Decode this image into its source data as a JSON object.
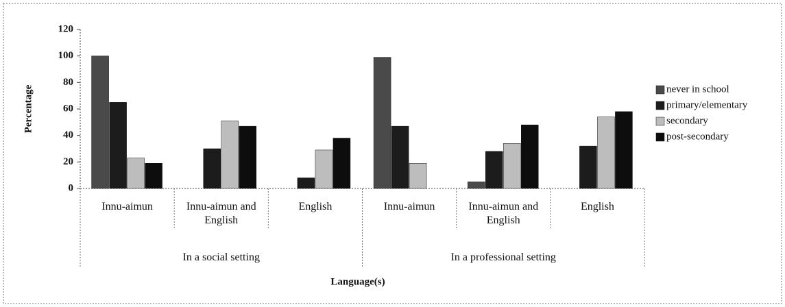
{
  "chart_data": {
    "type": "bar",
    "groups": [
      {
        "label": "In a social setting",
        "categories": [
          "Innu-aimun",
          "Innu-aimun and English",
          "English"
        ]
      },
      {
        "label": "In a professional setting",
        "categories": [
          "Innu-aimun",
          "Innu-aimun and English",
          "English"
        ]
      }
    ],
    "series": [
      {
        "name": "never in school",
        "color": "#4a4a4a",
        "values": [
          100,
          0,
          0,
          99,
          5,
          0
        ]
      },
      {
        "name": "primary/elementary",
        "color": "#1c1c1c",
        "values": [
          65,
          30,
          8,
          47,
          28,
          32
        ]
      },
      {
        "name": "secondary",
        "color": "#bdbdbd",
        "values": [
          23,
          51,
          29,
          19,
          34,
          54
        ]
      },
      {
        "name": "post-secondary",
        "color": "#0d0d0d",
        "values": [
          19,
          47,
          38,
          0,
          48,
          58
        ]
      }
    ],
    "y_label": "Percentage",
    "x_label": "Language(s)",
    "ylim": [
      0,
      120
    ],
    "yticks": [
      0,
      20,
      40,
      60,
      80,
      100,
      120
    ],
    "legend": "right"
  }
}
